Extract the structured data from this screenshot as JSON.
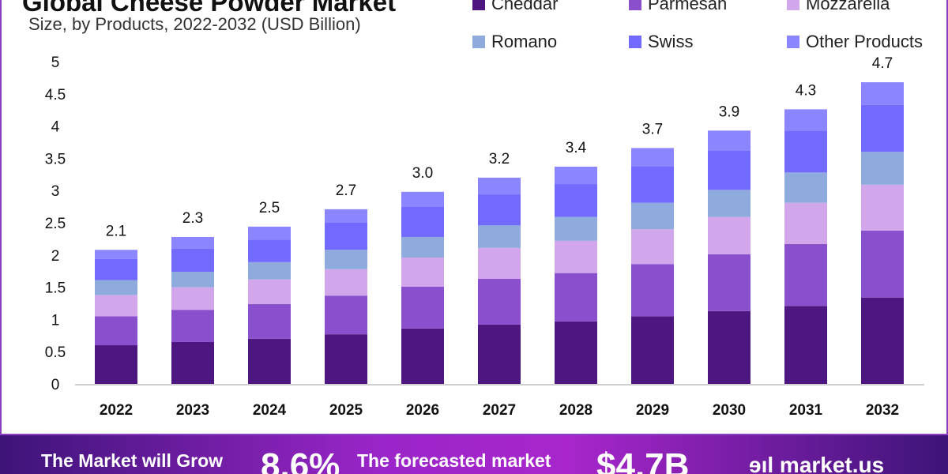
{
  "chart_data": {
    "type": "bar",
    "stacked": true,
    "title": "Global Cheese Powder Market",
    "subtitle": "Size, by Products, 2022-2032 (USD Billion)",
    "xlabel": "",
    "ylabel": "",
    "ylim": [
      0,
      5
    ],
    "yticks": [
      "0",
      "0.5",
      "1",
      "1.5",
      "2",
      "2.5",
      "3",
      "3.5",
      "4",
      "4.5",
      "5"
    ],
    "grid": false,
    "legend_position": "top-right",
    "categories": [
      "2022",
      "2023",
      "2024",
      "2025",
      "2026",
      "2027",
      "2028",
      "2029",
      "2030",
      "2031",
      "2032"
    ],
    "totals_labels": [
      "2.1",
      "2.3",
      "2.5",
      "2.7",
      "3.0",
      "3.2",
      "3.4",
      "3.7",
      "3.9",
      "4.3",
      "4.7"
    ],
    "series": [
      {
        "name": "Cheddar",
        "color": "#4e1680",
        "values": [
          0.6,
          0.65,
          0.7,
          0.77,
          0.86,
          0.92,
          0.97,
          1.05,
          1.13,
          1.21,
          1.34
        ]
      },
      {
        "name": "Parmesan",
        "color": "#8a4fcc",
        "values": [
          0.45,
          0.5,
          0.54,
          0.6,
          0.65,
          0.71,
          0.75,
          0.81,
          0.88,
          0.96,
          1.04
        ]
      },
      {
        "name": "Mozzarella",
        "color": "#d2a6ea",
        "values": [
          0.33,
          0.35,
          0.38,
          0.41,
          0.45,
          0.48,
          0.5,
          0.54,
          0.58,
          0.64,
          0.71
        ]
      },
      {
        "name": "Romano",
        "color": "#8faadc",
        "values": [
          0.23,
          0.24,
          0.27,
          0.3,
          0.32,
          0.35,
          0.37,
          0.41,
          0.42,
          0.47,
          0.51
        ]
      },
      {
        "name": "Swiss",
        "color": "#7269ff",
        "values": [
          0.33,
          0.36,
          0.35,
          0.42,
          0.47,
          0.48,
          0.51,
          0.56,
          0.61,
          0.65,
          0.73
        ]
      },
      {
        "name": "Other Products",
        "color": "#8b85ff",
        "values": [
          0.14,
          0.18,
          0.2,
          0.21,
          0.23,
          0.26,
          0.27,
          0.29,
          0.31,
          0.33,
          0.35
        ]
      }
    ]
  },
  "banner": {
    "grow_label": "The Market will Grow",
    "cagr": "8.6%",
    "forecast_label": "The forecasted market",
    "forecast_value": "$4.7B",
    "brand": "market.us"
  }
}
